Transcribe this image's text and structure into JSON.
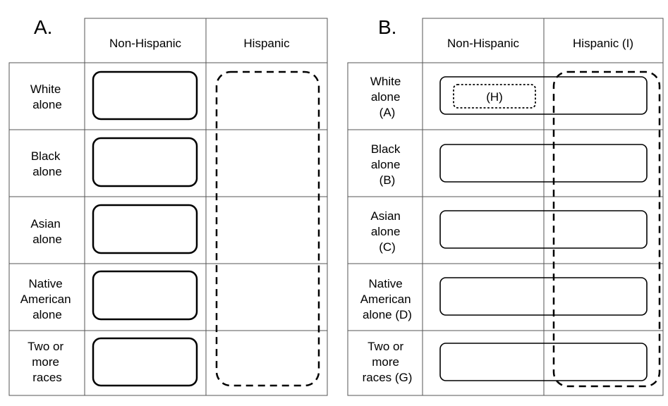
{
  "panels": {
    "a": {
      "label": "A.",
      "columns": [
        "Non-Hispanic",
        "Hispanic"
      ],
      "rows": [
        [
          "White",
          "alone"
        ],
        [
          "Black",
          "alone"
        ],
        [
          "Asian",
          "alone"
        ],
        [
          "Native",
          "American",
          "alone"
        ],
        [
          "Two or",
          "more",
          "races"
        ]
      ]
    },
    "b": {
      "label": "B.",
      "columns": [
        "Non-Hispanic",
        "Hispanic (I)"
      ],
      "rows": [
        [
          "White",
          "alone",
          "(A)"
        ],
        [
          "Black",
          "alone",
          "(B)"
        ],
        [
          "Asian",
          "alone",
          "(C)"
        ],
        [
          "Native",
          "American",
          "alone (D)"
        ],
        [
          "Two or",
          "more",
          "races (G)"
        ]
      ],
      "inner_box_label": "(H)"
    }
  }
}
